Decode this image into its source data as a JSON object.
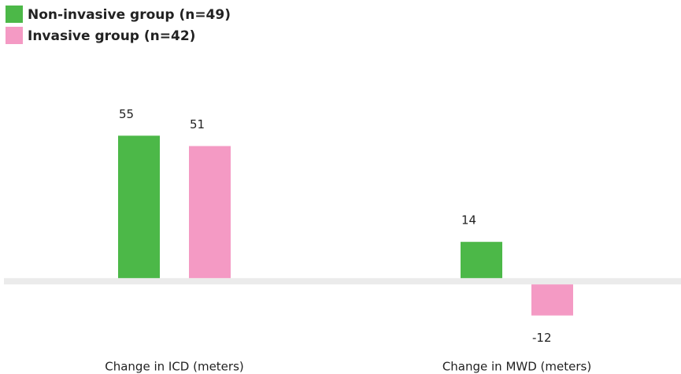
{
  "chart_data": {
    "type": "bar",
    "categories": [
      "Change in ICD (meters)",
      "Change in MWD (meters)"
    ],
    "series": [
      {
        "name": "Non-invasive group (n=49)",
        "color": "#4cb848",
        "values": [
          55,
          14
        ]
      },
      {
        "name": "Invasive group (n=42)",
        "color": "#f49ac4",
        "values": [
          51,
          -12
        ]
      }
    ],
    "ylim": [
      -20,
      70
    ],
    "legend": "top-left"
  }
}
